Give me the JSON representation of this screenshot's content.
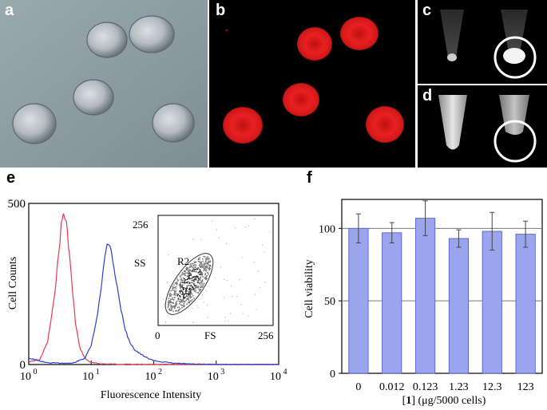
{
  "panels": {
    "a": {
      "label": "a"
    },
    "b": {
      "label": "b"
    },
    "c": {
      "label": "c"
    },
    "d": {
      "label": "d"
    },
    "e": {
      "label": "e"
    },
    "f": {
      "label": "f"
    }
  },
  "colors": {
    "dic_background": "#8e9ca4",
    "fluorescence_red": "#e01818",
    "histogram_red": "#e8384f",
    "histogram_blue": "#2a3ed8",
    "bar_fill": "#9ba5ee",
    "bar_edge": "#4a55c8"
  },
  "chart_data": [
    {
      "type": "line",
      "panel": "e",
      "xlabel": "Fluorescence Intensity",
      "ylabel": "Cell Counts",
      "x_scale": "log",
      "xlim": [
        1,
        10000
      ],
      "ylim": [
        0,
        500
      ],
      "x_ticks": [
        "10",
        "10",
        "10",
        "10",
        "10"
      ],
      "x_tick_exponents": [
        "0",
        "1",
        "2",
        "3",
        "4"
      ],
      "y_ticks": [
        "0",
        "500"
      ],
      "series": [
        {
          "color": "red",
          "x": [
            1,
            1.5,
            2,
            2.5,
            3,
            3.3,
            3.6,
            4,
            4.5,
            5,
            5.6,
            6.5,
            8,
            10,
            15,
            30,
            100,
            10000
          ],
          "y": [
            8,
            15,
            70,
            190,
            340,
            430,
            470,
            440,
            340,
            230,
            130,
            55,
            18,
            6,
            2,
            1,
            0,
            0
          ]
        },
        {
          "color": "blue",
          "x": [
            1,
            2,
            5,
            8,
            10,
            12,
            14,
            16,
            18,
            20,
            22,
            25,
            30,
            35,
            40,
            50,
            70,
            100,
            200,
            500,
            1000,
            10000
          ],
          "y": [
            20,
            5,
            4,
            20,
            60,
            130,
            220,
            320,
            370,
            375,
            330,
            260,
            170,
            110,
            75,
            45,
            25,
            12,
            4,
            1,
            0,
            0
          ]
        }
      ],
      "inset": {
        "type": "scatter",
        "xlabel": "FS",
        "ylabel": "SS",
        "xlim": [
          0,
          256
        ],
        "ylim": [
          0,
          256
        ],
        "x_ticks": [
          "0",
          "256"
        ],
        "y_ticks": [
          "256"
        ],
        "gate_label": "R2"
      }
    },
    {
      "type": "bar",
      "panel": "f",
      "xlabel": "[1] (μg/5000 cells)",
      "xlabel_parts": [
        "[",
        "1",
        "] (μg/5000 cells)"
      ],
      "ylabel": "Cell viability",
      "categories": [
        "0",
        "0.012",
        "0.123",
        "1.23",
        "12.3",
        "123"
      ],
      "values": [
        100,
        97,
        107,
        93,
        98,
        96
      ],
      "errors": [
        10,
        7,
        12,
        6,
        13,
        9
      ],
      "ylim": [
        0,
        120
      ],
      "y_ticks": [
        "0",
        "50",
        "100"
      ]
    }
  ]
}
